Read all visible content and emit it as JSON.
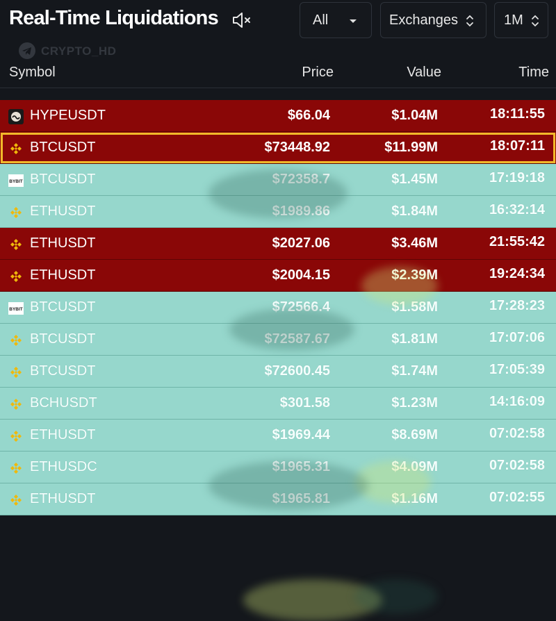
{
  "header": {
    "title": "Real-Time Liquidations",
    "mute_icon": "speaker-muted-icon",
    "filter_side": {
      "label": "All",
      "icon": "caret-down-icon"
    },
    "filter_exchange": {
      "label": "Exchanges",
      "icon": "up-down-chevron-icon"
    },
    "filter_period": {
      "label": "1M",
      "icon": "up-down-chevron-icon"
    }
  },
  "watermark": {
    "text": "CRYPTO_HD",
    "icon": "telegram-icon"
  },
  "columns": {
    "symbol": "Symbol",
    "price": "Price",
    "value": "Value",
    "time": "Time"
  },
  "colors": {
    "long_liq": "#8a0707",
    "short_liq": "#96d7cc",
    "highlight": "#f2b92a"
  },
  "rows": [
    {
      "symbol": "HYPEUSDT",
      "price": "$66.04",
      "value": "$1.04M",
      "time": "18:11:55",
      "side": "red",
      "exchange_icon": "hyperliquid-icon"
    },
    {
      "symbol": "BTCUSDT",
      "price": "$73448.92",
      "value": "$11.99M",
      "time": "18:07:11",
      "side": "red",
      "exchange_icon": "binance-icon",
      "highlighted": true
    },
    {
      "symbol": "BTCUSDT",
      "price": "$72358.7",
      "value": "$1.45M",
      "time": "17:19:18",
      "side": "teal",
      "exchange_icon": "bybit-icon"
    },
    {
      "symbol": "ETHUSDT",
      "price": "$1989.86",
      "value": "$1.84M",
      "time": "16:32:14",
      "side": "teal",
      "exchange_icon": "binance-icon"
    },
    {
      "symbol": "ETHUSDT",
      "price": "$2027.06",
      "value": "$3.46M",
      "time": "21:55:42",
      "side": "red",
      "exchange_icon": "binance-icon"
    },
    {
      "symbol": "ETHUSDT",
      "price": "$2004.15",
      "value": "$2.39M",
      "time": "19:24:34",
      "side": "red",
      "exchange_icon": "binance-icon"
    },
    {
      "symbol": "BTCUSDT",
      "price": "$72566.4",
      "value": "$1.58M",
      "time": "17:28:23",
      "side": "teal",
      "exchange_icon": "bybit-icon"
    },
    {
      "symbol": "BTCUSDT",
      "price": "$72587.67",
      "value": "$1.81M",
      "time": "17:07:06",
      "side": "teal",
      "exchange_icon": "binance-icon"
    },
    {
      "symbol": "BTCUSDT",
      "price": "$72600.45",
      "value": "$1.74M",
      "time": "17:05:39",
      "side": "teal",
      "exchange_icon": "binance-icon"
    },
    {
      "symbol": "BCHUSDT",
      "price": "$301.58",
      "value": "$1.23M",
      "time": "14:16:09",
      "side": "teal",
      "exchange_icon": "binance-icon"
    },
    {
      "symbol": "ETHUSDT",
      "price": "$1969.44",
      "value": "$8.69M",
      "time": "07:02:58",
      "side": "teal",
      "exchange_icon": "binance-icon"
    },
    {
      "symbol": "ETHUSDC",
      "price": "$1965.31",
      "value": "$4.09M",
      "time": "07:02:58",
      "side": "teal",
      "exchange_icon": "binance-icon"
    },
    {
      "symbol": "ETHUSDT",
      "price": "$1965.81",
      "value": "$1.16M",
      "time": "07:02:55",
      "side": "teal",
      "exchange_icon": "binance-icon"
    }
  ]
}
